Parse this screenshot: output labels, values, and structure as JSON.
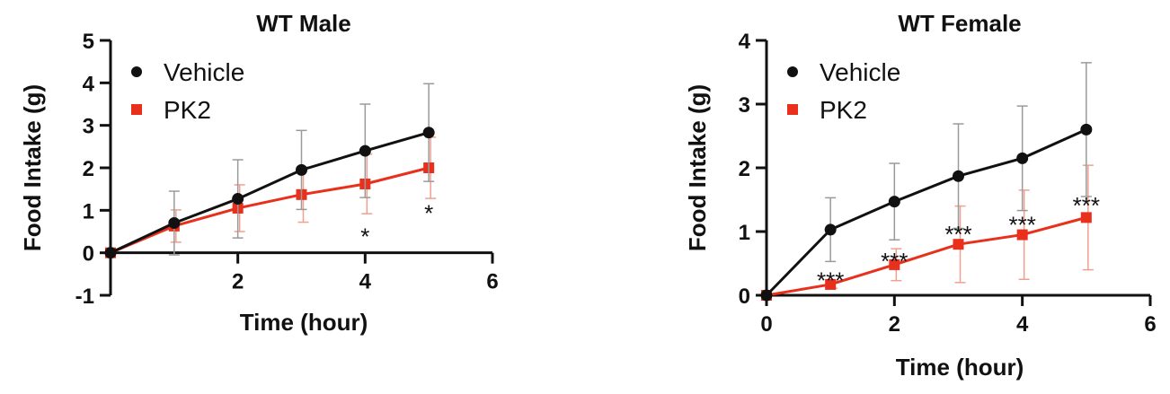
{
  "chart_data": [
    {
      "type": "line",
      "title": "WT Male",
      "xlabel": "Time (hour)",
      "ylabel": "Food Intake (g)",
      "xlim": [
        0,
        6
      ],
      "ylim": [
        -1,
        5
      ],
      "xticks": [
        "2",
        "4",
        "6"
      ],
      "yticks": [
        "-1",
        "0",
        "1",
        "2",
        "3",
        "4",
        "5"
      ],
      "grid": false,
      "legend_position": "top-left",
      "series": [
        {
          "name": "Vehicle",
          "color": "#111111",
          "marker": "circle",
          "x": [
            0,
            1,
            2,
            3,
            4,
            5
          ],
          "y": [
            0,
            0.7,
            1.27,
            1.95,
            2.4,
            2.83
          ],
          "err": [
            0,
            0.75,
            0.92,
            0.93,
            1.1,
            1.15
          ]
        },
        {
          "name": "PK2",
          "color": "#e8301c",
          "marker": "square",
          "x": [
            0,
            1,
            2,
            3,
            4,
            5
          ],
          "y": [
            0,
            0.63,
            1.05,
            1.37,
            1.62,
            2.0
          ],
          "err": [
            0,
            0.38,
            0.55,
            0.65,
            0.7,
            0.72
          ]
        }
      ],
      "annotations": [
        {
          "x": 4,
          "y": 0.4,
          "text": "*"
        },
        {
          "x": 5,
          "y": 0.95,
          "text": "*"
        }
      ]
    },
    {
      "type": "line",
      "title": "WT Female",
      "xlabel": "Time (hour)",
      "ylabel": "Food Intake (g)",
      "xlim": [
        0,
        6
      ],
      "ylim": [
        0,
        4
      ],
      "xticks": [
        "0",
        "2",
        "4",
        "6"
      ],
      "yticks": [
        "0",
        "1",
        "2",
        "3",
        "4"
      ],
      "grid": false,
      "legend_position": "top-left",
      "series": [
        {
          "name": "Vehicle",
          "color": "#111111",
          "marker": "circle",
          "x": [
            0,
            1,
            2,
            3,
            4,
            5
          ],
          "y": [
            0,
            1.03,
            1.47,
            1.87,
            2.15,
            2.6
          ],
          "err": [
            0,
            0.5,
            0.6,
            0.82,
            0.82,
            1.05
          ]
        },
        {
          "name": "PK2",
          "color": "#e8301c",
          "marker": "square",
          "x": [
            0,
            1,
            2,
            3,
            4,
            5
          ],
          "y": [
            0,
            0.17,
            0.48,
            0.8,
            0.95,
            1.22
          ],
          "err": [
            0,
            0.06,
            0.25,
            0.6,
            0.7,
            0.82
          ]
        }
      ],
      "annotations": [
        {
          "x": 1,
          "y": 0.25,
          "text": "***"
        },
        {
          "x": 2,
          "y": 0.55,
          "text": "***"
        },
        {
          "x": 3,
          "y": 0.97,
          "text": "***"
        },
        {
          "x": 4,
          "y": 1.12,
          "text": "***"
        },
        {
          "x": 5,
          "y": 1.42,
          "text": "***"
        }
      ]
    }
  ]
}
